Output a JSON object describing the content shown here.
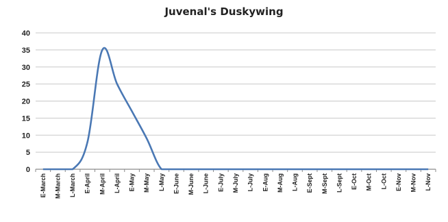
{
  "chart_data": {
    "type": "line",
    "title": "Juvenal's Duskywing",
    "categories": [
      "E-March",
      "M-March",
      "L-March",
      "E-April",
      "M-April",
      "L-April",
      "E-May",
      "M-May",
      "L-May",
      "E-June",
      "M-June",
      "L-June",
      "E-July",
      "M-July",
      "L-July",
      "E-Aug",
      "M-Aug",
      "L-Aug",
      "E-Sept",
      "M-Sept",
      "L-Sept",
      "E-Oct",
      "M-Oct",
      "L-Oct",
      "E-Nov",
      "M-Nov",
      "L-Nov"
    ],
    "series": [
      {
        "values": [
          0,
          0,
          0,
          8,
          35,
          25,
          17,
          9,
          0,
          0,
          0,
          0,
          0,
          0,
          0,
          0,
          0,
          0,
          0,
          0,
          0,
          0,
          0,
          0,
          0,
          0,
          0
        ],
        "color": "#4a78b4"
      }
    ],
    "ylim": [
      0,
      40
    ],
    "yticks": [
      0,
      5,
      10,
      15,
      20,
      25,
      30,
      35,
      40
    ],
    "grid": true,
    "legend": "none"
  }
}
